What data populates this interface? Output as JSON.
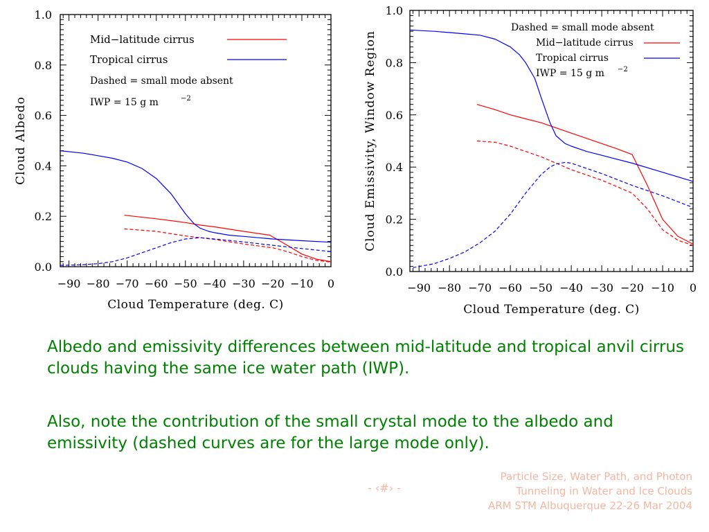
{
  "chart_data": [
    {
      "type": "line",
      "title": "",
      "xlabel": "Cloud Temperature (deg. C)",
      "ylabel": "Cloud Albedo",
      "xlim": [
        -93,
        0
      ],
      "ylim": [
        0,
        1.0
      ],
      "xticks": [
        -90,
        -80,
        -70,
        -60,
        -50,
        -40,
        -30,
        -20,
        -10,
        0
      ],
      "xtick_labels": [
        "−90",
        "−80",
        "−70",
        "−60",
        "−50",
        "−40",
        "−30",
        "−20",
        "−10",
        "0"
      ],
      "yticks": [
        0,
        0.2,
        0.4,
        0.6,
        0.8,
        1.0
      ],
      "ytick_labels": [
        "0.0",
        "0.2",
        "0.4",
        "0.6",
        "0.8",
        "1.0"
      ],
      "legend": [
        "Mid−latitude cirrus",
        "Tropical cirrus"
      ],
      "legend_notes": [
        "Dashed = small mode absent",
        "IWP = 15 g m",
        "−2"
      ],
      "legend_position": "top-left",
      "series": [
        {
          "name": "Mid−latitude cirrus",
          "color": "#ff0000",
          "dash": false,
          "x": [
            -71,
            -60,
            -50,
            -45,
            -40,
            -30,
            -21,
            -15,
            -10,
            -5,
            0
          ],
          "y": [
            0.204,
            0.19,
            0.175,
            0.165,
            0.158,
            0.14,
            0.125,
            0.085,
            0.05,
            0.03,
            0.02
          ]
        },
        {
          "name": "Tropical cirrus",
          "color": "#0000ff",
          "dash": false,
          "x": [
            -93,
            -85,
            -80,
            -75,
            -70,
            -65,
            -60,
            -55,
            -50,
            -47,
            -45,
            -42,
            -40,
            -35,
            -30,
            -20,
            -10,
            0
          ],
          "y": [
            0.46,
            0.45,
            0.44,
            0.43,
            0.415,
            0.39,
            0.35,
            0.29,
            0.21,
            0.17,
            0.153,
            0.14,
            0.135,
            0.125,
            0.12,
            0.11,
            0.103,
            0.097
          ]
        },
        {
          "name": "Mid−latitude cirrus (small mode absent)",
          "color": "#ff0000",
          "dash": true,
          "x": [
            -71,
            -60,
            -50,
            -45,
            -40,
            -30,
            -20,
            -15,
            -10,
            -5,
            0
          ],
          "y": [
            0.15,
            0.14,
            0.122,
            0.115,
            0.108,
            0.09,
            0.075,
            0.06,
            0.04,
            0.025,
            0.018
          ]
        },
        {
          "name": "Tropical cirrus (small mode absent)",
          "color": "#0000ff",
          "dash": true,
          "x": [
            -93,
            -85,
            -80,
            -75,
            -70,
            -65,
            -60,
            -55,
            -50,
            -45,
            -40,
            -30,
            -20,
            -10,
            0
          ],
          "y": [
            0.005,
            0.008,
            0.012,
            0.02,
            0.035,
            0.055,
            0.075,
            0.095,
            0.11,
            0.115,
            0.11,
            0.098,
            0.085,
            0.072,
            0.06
          ]
        }
      ]
    },
    {
      "type": "line",
      "title": "",
      "xlabel": "Cloud Temperature (deg. C)",
      "ylabel": "Cloud Emissivity, Window Region",
      "xlim": [
        -93,
        0
      ],
      "ylim": [
        0,
        1.0
      ],
      "xticks": [
        -90,
        -80,
        -70,
        -60,
        -50,
        -40,
        -30,
        -20,
        -10,
        0
      ],
      "xtick_labels": [
        "−90",
        "−80",
        "−70",
        "−60",
        "−50",
        "−40",
        "−30",
        "−20",
        "−10",
        "0"
      ],
      "yticks": [
        0,
        0.2,
        0.4,
        0.6,
        0.8,
        1.0
      ],
      "ytick_labels": [
        "0.0",
        "0.2",
        "0.4",
        "0.6",
        "0.8",
        "1.0"
      ],
      "legend": [
        "Mid−latitude cirrus",
        "Tropical cirrus"
      ],
      "legend_notes": [
        "Dashed = small mode absent",
        "IWP = 15 g m",
        "−2"
      ],
      "legend_position": "top-right",
      "series": [
        {
          "name": "Mid−latitude cirrus",
          "color": "#ff0000",
          "dash": false,
          "x": [
            -71,
            -65,
            -60,
            -55,
            -50,
            -45,
            -40,
            -35,
            -30,
            -25,
            -20,
            -15,
            -10,
            -5,
            0
          ],
          "y": [
            0.64,
            0.62,
            0.6,
            0.585,
            0.57,
            0.55,
            0.53,
            0.51,
            0.49,
            0.47,
            0.448,
            0.33,
            0.2,
            0.135,
            0.105
          ]
        },
        {
          "name": "Tropical cirrus",
          "color": "#0000ff",
          "dash": false,
          "x": [
            -93,
            -85,
            -80,
            -75,
            -70,
            -65,
            -60,
            -57,
            -55,
            -52,
            -50,
            -47,
            -45,
            -42,
            -40,
            -35,
            -30,
            -20,
            -10,
            0
          ],
          "y": [
            0.925,
            0.92,
            0.915,
            0.91,
            0.905,
            0.89,
            0.86,
            0.83,
            0.8,
            0.74,
            0.67,
            0.57,
            0.52,
            0.49,
            0.48,
            0.46,
            0.445,
            0.415,
            0.38,
            0.345
          ]
        },
        {
          "name": "Mid−latitude cirrus (small mode absent)",
          "color": "#ff0000",
          "dash": true,
          "x": [
            -71,
            -65,
            -60,
            -55,
            -50,
            -45,
            -40,
            -35,
            -30,
            -25,
            -20,
            -15,
            -10,
            -5,
            0
          ],
          "y": [
            0.5,
            0.495,
            0.48,
            0.46,
            0.44,
            0.415,
            0.39,
            0.37,
            0.35,
            0.325,
            0.3,
            0.24,
            0.16,
            0.12,
            0.1
          ]
        },
        {
          "name": "Tropical cirrus (small mode absent)",
          "color": "#0000ff",
          "dash": true,
          "x": [
            -92,
            -85,
            -80,
            -75,
            -70,
            -65,
            -60,
            -55,
            -50,
            -47,
            -45,
            -42,
            -40,
            -35,
            -30,
            -20,
            -10,
            0
          ],
          "y": [
            0.015,
            0.03,
            0.05,
            0.075,
            0.11,
            0.155,
            0.22,
            0.3,
            0.37,
            0.4,
            0.412,
            0.418,
            0.415,
            0.395,
            0.375,
            0.33,
            0.29,
            0.245
          ]
        }
      ]
    }
  ],
  "caption": {
    "line1": "Albedo and emissivity differences between mid-latitude and tropical anvil cirrus clouds having the same ice water path (IWP).",
    "line2": "Also, note the contribution of the small crystal mode to the albedo and emissivity (dashed curves are for the large mode only)."
  },
  "footer": {
    "page": "- ‹#› -",
    "line1": "Particle Size, Water Path, and Photon",
    "line2": "Tunneling in Water and Ice Clouds",
    "line3": "ARM STM Albuquerque 22-26 Mar 2004"
  },
  "colors": {
    "caption": "#008000",
    "footer": "#f4b6a0",
    "mid_latitude": "#ff0000",
    "tropical": "#0000ff"
  }
}
